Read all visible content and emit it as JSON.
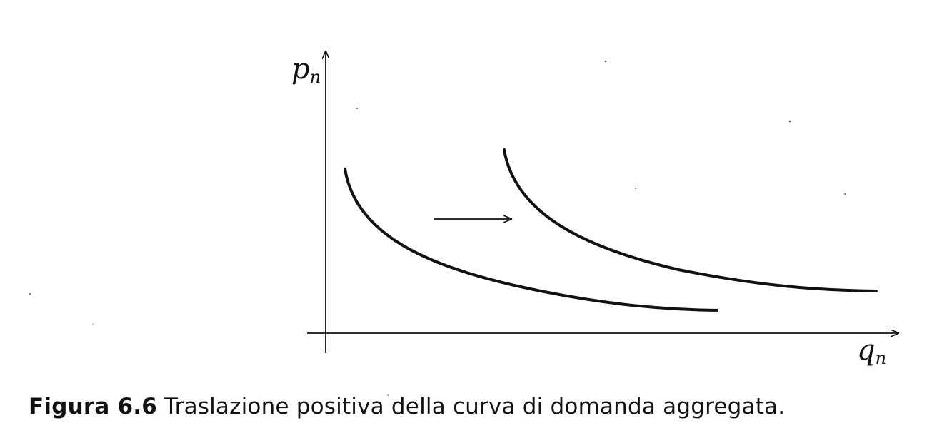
{
  "figure": {
    "x_axis_label": {
      "main": "q",
      "sub": "n"
    },
    "y_axis_label": {
      "main": "p",
      "sub": "n"
    }
  },
  "caption": {
    "label": "Figura 6.6",
    "text": " Traslazione positiva della curva di domanda aggregata."
  }
}
